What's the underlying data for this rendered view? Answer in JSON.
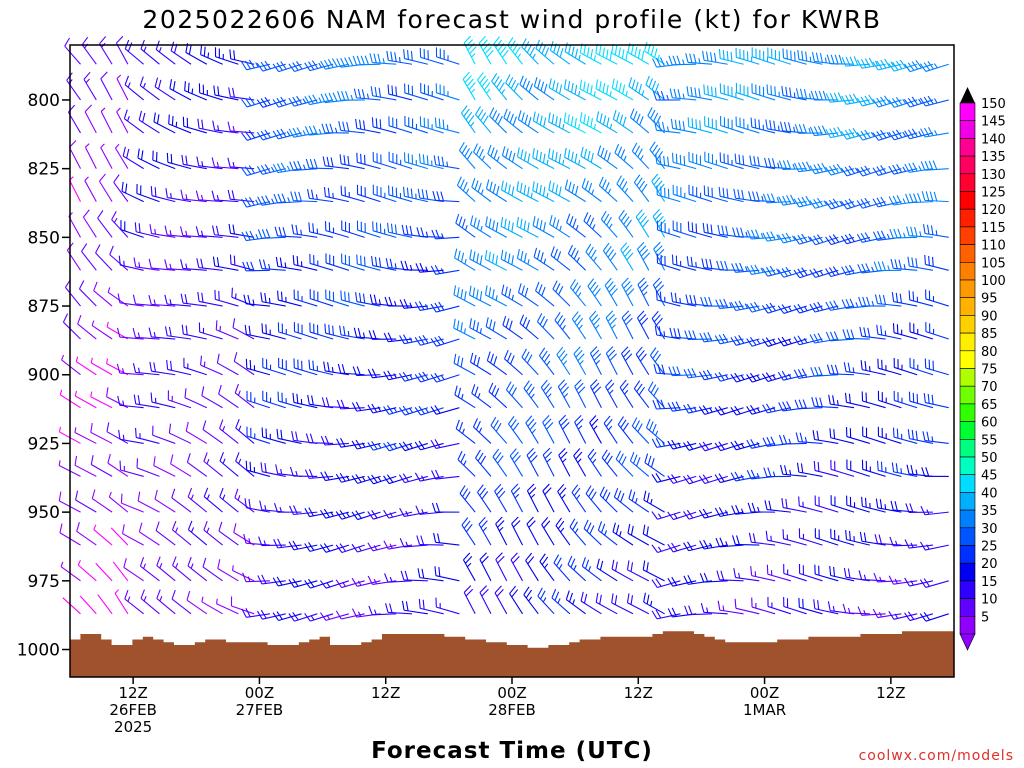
{
  "title": "2025022606 NAM forecast wind profile (kt) for KWRB",
  "credit": "coolwx.com/models",
  "colors": {
    "ground": "#a0522d",
    "axis": "#000000",
    "credit": "#e0302a"
  },
  "chart_data": {
    "type": "wind-barb-profile",
    "title": "2025022606 NAM forecast wind profile (kt) for KWRB",
    "xlabel": "Forecast Time (UTC)",
    "ylabel": "",
    "y_axis": {
      "ticks": [
        800,
        825,
        850,
        875,
        900,
        925,
        950,
        975,
        1000
      ],
      "range": [
        780,
        1010
      ],
      "inverted": true
    },
    "x_axis": {
      "range_hours": [
        0,
        84
      ],
      "ticks": [
        {
          "hour": 6,
          "lines": [
            "12Z",
            "26FEB",
            "2025"
          ]
        },
        {
          "hour": 18,
          "lines": [
            "00Z",
            "27FEB"
          ]
        },
        {
          "hour": 30,
          "lines": [
            "12Z"
          ]
        },
        {
          "hour": 42,
          "lines": [
            "00Z",
            "28FEB"
          ]
        },
        {
          "hour": 54,
          "lines": [
            "12Z"
          ]
        },
        {
          "hour": 66,
          "lines": [
            "00Z",
            "1MAR"
          ]
        },
        {
          "hour": 78,
          "lines": [
            "12Z"
          ]
        }
      ]
    },
    "barb_levels": [
      787,
      800,
      812,
      825,
      837,
      850,
      862,
      875,
      887,
      900,
      912,
      925,
      937,
      950,
      962,
      975,
      987,
      1000
    ],
    "surface_pressure": [
      1000,
      998,
      998,
      1000,
      1002,
      1002,
      1000,
      999,
      1000,
      1001,
      1002,
      1002,
      1001,
      1000,
      1000,
      1001,
      1001,
      1001,
      1001,
      1002,
      1002,
      1002,
      1001,
      1000,
      999,
      1002,
      1002,
      1002,
      1001,
      1000,
      998,
      998,
      998,
      998,
      998,
      998,
      999,
      999,
      1000,
      1000,
      1001,
      1001,
      1002,
      1002,
      1003,
      1003,
      1002,
      1002,
      1001,
      1000,
      1000,
      999,
      999,
      999,
      999,
      999,
      998,
      997,
      997,
      997,
      998,
      999,
      1000,
      1001,
      1001,
      1001,
      1001,
      1001,
      1000,
      1000,
      1000,
      999,
      999,
      999,
      999,
      999,
      998,
      998,
      998,
      998,
      997,
      997,
      997,
      997,
      997
    ],
    "wind_regimes": [
      {
        "hours": [
          0,
          6
        ],
        "direction": "northwest",
        "speed_kt": [
          5,
          10
        ]
      },
      {
        "hours": [
          6,
          18
        ],
        "direction": "west-northwest",
        "speed_kt": [
          10,
          20
        ]
      },
      {
        "hours": [
          18,
          38
        ],
        "direction": "west",
        "speed_kt": [
          15,
          35
        ]
      },
      {
        "hours": [
          38,
          58
        ],
        "direction": "northwest",
        "speed_kt": [
          20,
          45
        ]
      },
      {
        "hours": [
          58,
          84
        ],
        "direction": "west",
        "speed_kt": [
          15,
          40
        ]
      }
    ],
    "colorbar": {
      "labels": [
        150,
        145,
        140,
        135,
        130,
        125,
        120,
        115,
        110,
        105,
        100,
        95,
        90,
        85,
        80,
        75,
        70,
        65,
        60,
        55,
        50,
        45,
        40,
        35,
        30,
        25,
        20,
        15,
        10,
        5
      ],
      "colors": [
        "#ff00ff",
        "#f000e6",
        "#ff0090",
        "#ff0060",
        "#ff0030",
        "#ff0000",
        "#ff2000",
        "#ff4000",
        "#ff6000",
        "#ff8000",
        "#ff9900",
        "#ffb300",
        "#ffd000",
        "#ffee00",
        "#ffff00",
        "#b0ff00",
        "#70ff00",
        "#30ff00",
        "#00ff30",
        "#00ff80",
        "#00ffc0",
        "#00ddff",
        "#00b0ff",
        "#0080ff",
        "#0055ff",
        "#0030ff",
        "#0000f0",
        "#3000ff",
        "#6000ff",
        "#9000ff"
      ]
    }
  }
}
